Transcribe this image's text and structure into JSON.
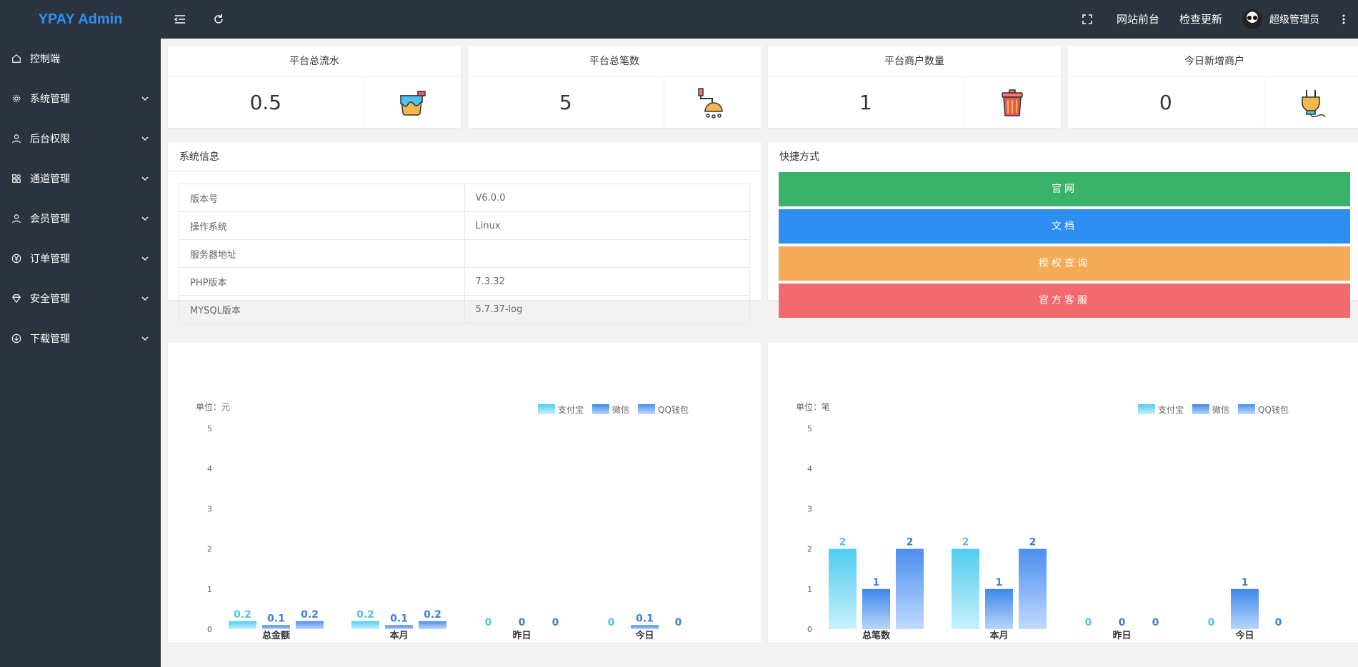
{
  "app": {
    "logo": "YPAY Admin"
  },
  "sidebar": {
    "items": [
      {
        "label": "控制端",
        "icon": "home-icon"
      },
      {
        "label": "系统管理",
        "icon": "gear-icon"
      },
      {
        "label": "后台权限",
        "icon": "user-icon"
      },
      {
        "label": "通道管理",
        "icon": "apps-icon"
      },
      {
        "label": "会员管理",
        "icon": "user-icon"
      },
      {
        "label": "订单管理",
        "icon": "yen-icon"
      },
      {
        "label": "安全管理",
        "icon": "diamond-icon"
      },
      {
        "label": "下载管理",
        "icon": "download-icon"
      }
    ]
  },
  "topbar": {
    "links": [
      "网站前台",
      "检查更新"
    ],
    "user": "超级管理员"
  },
  "stats": [
    {
      "title": "平台总流水",
      "value": "0.5",
      "icon": "paint-bucket-icon"
    },
    {
      "title": "平台总笔数",
      "value": "5",
      "icon": "shower-icon"
    },
    {
      "title": "平台商户数量",
      "value": "1",
      "icon": "trash-bin-icon"
    },
    {
      "title": "今日新增商户",
      "value": "0",
      "icon": "plug-icon"
    }
  ],
  "system_info": {
    "title": "系统信息",
    "rows": [
      {
        "k": "版本号",
        "v": "V6.0.0"
      },
      {
        "k": "操作系统",
        "v": "Linux"
      },
      {
        "k": "服务器地址",
        "v": ""
      },
      {
        "k": "PHP版本",
        "v": "7.3.32"
      },
      {
        "k": "MYSQL版本",
        "v": "5.7.37-log"
      }
    ]
  },
  "quick_links": {
    "title": "快捷方式",
    "buttons": [
      {
        "label": "官网",
        "color": "#3ab26a"
      },
      {
        "label": "文档",
        "color": "#2e8df0"
      },
      {
        "label": "授权查询",
        "color": "#f4aa57"
      },
      {
        "label": "官方客服",
        "color": "#f26a6e"
      }
    ]
  },
  "colors": {
    "alipay": "#4fcdf0",
    "wechat": "#3d87ea",
    "qq": "#4b8ef0"
  },
  "chart_data": [
    {
      "type": "bar",
      "unit_label": "单位：元",
      "categories": [
        "总金额",
        "本月",
        "昨日",
        "今日"
      ],
      "series": [
        {
          "name": "支付宝",
          "values": [
            0.2,
            0.2,
            0,
            0
          ]
        },
        {
          "name": "微信",
          "values": [
            0.1,
            0.1,
            0,
            0.1
          ]
        },
        {
          "name": "QQ钱包",
          "values": [
            0.2,
            0.2,
            0,
            0
          ]
        }
      ],
      "ylim": [
        0,
        5
      ],
      "yticks": [
        0,
        1,
        2,
        3,
        4,
        5
      ],
      "legend": "top-right",
      "grid": false
    },
    {
      "type": "bar",
      "unit_label": "单位：笔",
      "categories": [
        "总笔数",
        "本月",
        "昨日",
        "今日"
      ],
      "series": [
        {
          "name": "支付宝",
          "values": [
            2,
            2,
            0,
            0
          ]
        },
        {
          "name": "微信",
          "values": [
            1,
            1,
            0,
            1
          ]
        },
        {
          "name": "QQ钱包",
          "values": [
            2,
            2,
            0,
            0
          ]
        }
      ],
      "ylim": [
        0,
        5
      ],
      "yticks": [
        0,
        1,
        2,
        3,
        4,
        5
      ],
      "legend": "top-right",
      "grid": false
    }
  ]
}
